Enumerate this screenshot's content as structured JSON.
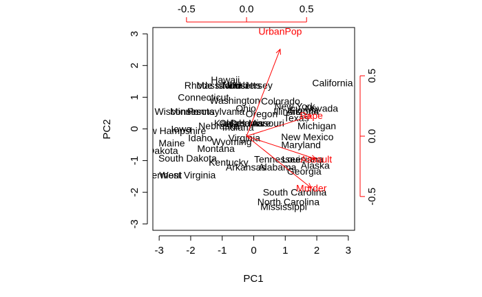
{
  "chart_data": {
    "type": "scatter",
    "title": "",
    "xlabel": "PC1",
    "ylabel": "PC2",
    "xlim": [
      -3.2,
      3.2
    ],
    "ylim": [
      -3.2,
      3.2
    ],
    "xticks": [
      -3,
      -2,
      -1,
      0,
      1,
      2,
      3
    ],
    "yticks": [
      -3,
      -2,
      -1,
      0,
      1,
      2,
      3
    ],
    "loading_xlim": [
      -0.78,
      0.9
    ],
    "loading_ylim": [
      -0.78,
      0.9
    ],
    "loading_xticks": [
      -0.5,
      0.0,
      0.5
    ],
    "loading_yticks": [
      -0.5,
      0.0,
      0.5
    ],
    "loading_color": "#ff0000",
    "point_color": "#000000",
    "points": [
      {
        "label": "California",
        "x": 2.5,
        "y": 1.45
      },
      {
        "label": "Hawaii",
        "x": -0.9,
        "y": 1.55
      },
      {
        "label": "Rhode Island",
        "x": -1.3,
        "y": 1.38
      },
      {
        "label": "Massachusetts",
        "x": -0.8,
        "y": 1.38
      },
      {
        "label": "Utah",
        "x": -0.5,
        "y": 1.38
      },
      {
        "label": "New Jersey",
        "x": -0.2,
        "y": 1.38
      },
      {
        "label": "Connecticut",
        "x": -1.6,
        "y": 1.0
      },
      {
        "label": "Washington",
        "x": -0.6,
        "y": 0.9
      },
      {
        "label": "Colorado",
        "x": 0.85,
        "y": 0.88
      },
      {
        "label": "New York",
        "x": 1.3,
        "y": 0.72
      },
      {
        "label": "Nevada",
        "x": 2.15,
        "y": 0.65
      },
      {
        "label": "Illinois",
        "x": 1.05,
        "y": 0.55
      },
      {
        "label": "Arizona",
        "x": 1.55,
        "y": 0.55
      },
      {
        "label": "Florida",
        "x": 1.6,
        "y": 0.6
      },
      {
        "label": "Ohio",
        "x": -0.25,
        "y": 0.65
      },
      {
        "label": "Wisconsin",
        "x": -2.45,
        "y": 0.55
      },
      {
        "label": "Minnesota",
        "x": -1.95,
        "y": 0.55
      },
      {
        "label": "Pennsylvania",
        "x": -1.2,
        "y": 0.55
      },
      {
        "label": "Oregon",
        "x": 0.25,
        "y": 0.48
      },
      {
        "label": "Texas",
        "x": 1.35,
        "y": 0.35
      },
      {
        "label": "Kansas",
        "x": -0.75,
        "y": 0.18
      },
      {
        "label": "Oklahoma",
        "x": -0.4,
        "y": 0.18
      },
      {
        "label": "Delaware",
        "x": -0.1,
        "y": 0.18
      },
      {
        "label": "Missouri",
        "x": 0.4,
        "y": 0.18
      },
      {
        "label": "Indiana",
        "x": -0.5,
        "y": 0.05
      },
      {
        "label": "Nebraska",
        "x": -1.1,
        "y": 0.1
      },
      {
        "label": "Michigan",
        "x": 2.0,
        "y": 0.1
      },
      {
        "label": "Iowa",
        "x": -2.3,
        "y": 0.0
      },
      {
        "label": "New Hampshire",
        "x": -2.6,
        "y": -0.05
      },
      {
        "label": "Idaho",
        "x": -1.7,
        "y": -0.28
      },
      {
        "label": "Virginia",
        "x": -0.3,
        "y": -0.28
      },
      {
        "label": "Wyoming",
        "x": -0.7,
        "y": -0.4
      },
      {
        "label": "New Mexico",
        "x": 1.7,
        "y": -0.25
      },
      {
        "label": "Maryland",
        "x": 1.5,
        "y": -0.5
      },
      {
        "label": "Maine",
        "x": -2.6,
        "y": -0.45
      },
      {
        "label": "Montana",
        "x": -1.2,
        "y": -0.62
      },
      {
        "label": "North Dakota",
        "x": -3.3,
        "y": -0.68
      },
      {
        "label": "South Dakota",
        "x": -2.1,
        "y": -0.92
      },
      {
        "label": "Tennessee",
        "x": 0.75,
        "y": -0.95
      },
      {
        "label": "Louisiana",
        "x": 1.55,
        "y": -0.95
      },
      {
        "label": "Kentucky",
        "x": -0.8,
        "y": -1.05
      },
      {
        "label": "Arkansas",
        "x": -0.25,
        "y": -1.2
      },
      {
        "label": "Alabama",
        "x": 0.75,
        "y": -1.2
      },
      {
        "label": "Alaska",
        "x": 1.95,
        "y": -1.15
      },
      {
        "label": "Georgia",
        "x": 1.6,
        "y": -1.33
      },
      {
        "label": "Vermont",
        "x": -2.85,
        "y": -1.45
      },
      {
        "label": "West Virginia",
        "x": -2.1,
        "y": -1.45
      },
      {
        "label": "South Carolina",
        "x": 1.3,
        "y": -2.0
      },
      {
        "label": "North Carolina",
        "x": 1.1,
        "y": -2.3
      },
      {
        "label": "Mississippi",
        "x": 0.95,
        "y": -2.45
      }
    ],
    "loadings": [
      {
        "label": "UrbanPop",
        "x": 0.28,
        "y": 0.87,
        "arrow_x": 0.28,
        "arrow_y": 0.72
      },
      {
        "label": "Rape",
        "x": 0.54,
        "y": 0.17,
        "arrow_x": 0.54,
        "arrow_y": 0.17
      },
      {
        "label": "Assault",
        "x": 0.58,
        "y": -0.19,
        "arrow_x": 0.58,
        "arrow_y": -0.19
      },
      {
        "label": "Murder",
        "x": 0.54,
        "y": -0.43,
        "arrow_x": 0.54,
        "arrow_y": -0.43
      }
    ]
  }
}
